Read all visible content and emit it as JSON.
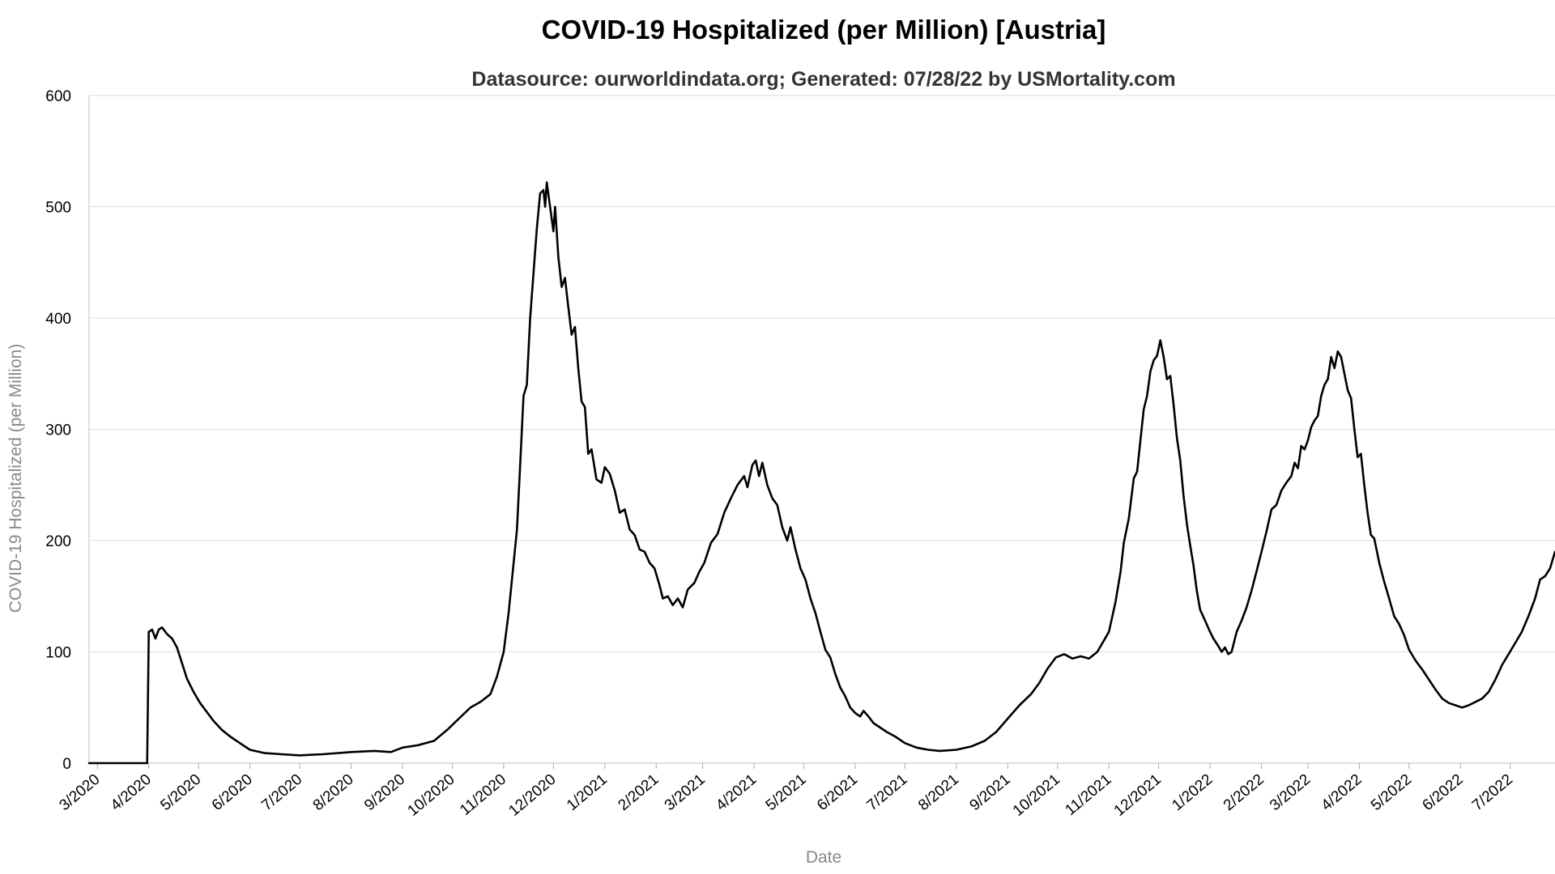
{
  "chart_data": {
    "type": "line",
    "title": "COVID-19 Hospitalized (per Million) [Austria]",
    "subtitle": "Datasource: ourworldindata.org; Generated: 07/28/22 by USMortality.com",
    "xlabel": "Date",
    "ylabel": "COVID-19 Hospitalized (per Million)",
    "ylim": [
      0,
      600
    ],
    "xlim": [
      "2020-02-25",
      "2022-07-28"
    ],
    "grid": true,
    "yticks": [
      0,
      100,
      200,
      300,
      400,
      500,
      600
    ],
    "xticks": [
      {
        "date": "2020-03-01",
        "label": "3/2020"
      },
      {
        "date": "2020-04-01",
        "label": "4/2020"
      },
      {
        "date": "2020-05-01",
        "label": "5/2020"
      },
      {
        "date": "2020-06-01",
        "label": "6/2020"
      },
      {
        "date": "2020-07-01",
        "label": "7/2020"
      },
      {
        "date": "2020-08-01",
        "label": "8/2020"
      },
      {
        "date": "2020-09-01",
        "label": "9/2020"
      },
      {
        "date": "2020-10-01",
        "label": "10/2020"
      },
      {
        "date": "2020-11-01",
        "label": "11/2020"
      },
      {
        "date": "2020-12-01",
        "label": "12/2020"
      },
      {
        "date": "2021-01-01",
        "label": "1/2021"
      },
      {
        "date": "2021-02-01",
        "label": "2/2021"
      },
      {
        "date": "2021-03-01",
        "label": "3/2021"
      },
      {
        "date": "2021-04-01",
        "label": "4/2021"
      },
      {
        "date": "2021-05-01",
        "label": "5/2021"
      },
      {
        "date": "2021-06-01",
        "label": "6/2021"
      },
      {
        "date": "2021-07-01",
        "label": "7/2021"
      },
      {
        "date": "2021-08-01",
        "label": "8/2021"
      },
      {
        "date": "2021-09-01",
        "label": "9/2021"
      },
      {
        "date": "2021-10-01",
        "label": "10/2021"
      },
      {
        "date": "2021-11-01",
        "label": "11/2021"
      },
      {
        "date": "2021-12-01",
        "label": "12/2021"
      },
      {
        "date": "2022-01-01",
        "label": "1/2022"
      },
      {
        "date": "2022-02-01",
        "label": "2/2022"
      },
      {
        "date": "2022-03-01",
        "label": "3/2022"
      },
      {
        "date": "2022-04-01",
        "label": "4/2022"
      },
      {
        "date": "2022-05-01",
        "label": "5/2022"
      },
      {
        "date": "2022-06-01",
        "label": "6/2022"
      },
      {
        "date": "2022-07-01",
        "label": "7/2022"
      }
    ],
    "series": [
      {
        "color": "#000000",
        "points": [
          [
            "2020-02-25",
            0
          ],
          [
            "2020-03-31",
            0
          ],
          [
            "2020-04-01",
            118
          ],
          [
            "2020-04-03",
            120
          ],
          [
            "2020-04-05",
            112
          ],
          [
            "2020-04-07",
            120
          ],
          [
            "2020-04-09",
            122
          ],
          [
            "2020-04-12",
            116
          ],
          [
            "2020-04-15",
            112
          ],
          [
            "2020-04-18",
            104
          ],
          [
            "2020-04-21",
            90
          ],
          [
            "2020-04-24",
            76
          ],
          [
            "2020-04-28",
            64
          ],
          [
            "2020-05-02",
            54
          ],
          [
            "2020-05-06",
            46
          ],
          [
            "2020-05-10",
            38
          ],
          [
            "2020-05-15",
            30
          ],
          [
            "2020-05-20",
            24
          ],
          [
            "2020-05-26",
            18
          ],
          [
            "2020-06-01",
            12
          ],
          [
            "2020-06-10",
            9
          ],
          [
            "2020-06-20",
            8
          ],
          [
            "2020-07-01",
            7
          ],
          [
            "2020-07-15",
            8
          ],
          [
            "2020-08-01",
            10
          ],
          [
            "2020-08-15",
            11
          ],
          [
            "2020-08-25",
            10
          ],
          [
            "2020-09-01",
            14
          ],
          [
            "2020-09-10",
            16
          ],
          [
            "2020-09-20",
            20
          ],
          [
            "2020-09-28",
            30
          ],
          [
            "2020-10-05",
            40
          ],
          [
            "2020-10-12",
            50
          ],
          [
            "2020-10-18",
            55
          ],
          [
            "2020-10-24",
            62
          ],
          [
            "2020-10-28",
            78
          ],
          [
            "2020-11-01",
            100
          ],
          [
            "2020-11-04",
            135
          ],
          [
            "2020-11-07",
            180
          ],
          [
            "2020-11-09",
            210
          ],
          [
            "2020-11-11",
            270
          ],
          [
            "2020-11-13",
            330
          ],
          [
            "2020-11-15",
            340
          ],
          [
            "2020-11-17",
            400
          ],
          [
            "2020-11-19",
            440
          ],
          [
            "2020-11-21",
            480
          ],
          [
            "2020-11-23",
            512
          ],
          [
            "2020-11-25",
            515
          ],
          [
            "2020-11-26",
            500
          ],
          [
            "2020-11-27",
            522
          ],
          [
            "2020-11-29",
            500
          ],
          [
            "2020-12-01",
            478
          ],
          [
            "2020-12-02",
            500
          ],
          [
            "2020-12-04",
            455
          ],
          [
            "2020-12-06",
            428
          ],
          [
            "2020-12-08",
            436
          ],
          [
            "2020-12-10",
            410
          ],
          [
            "2020-12-12",
            385
          ],
          [
            "2020-12-14",
            392
          ],
          [
            "2020-12-16",
            355
          ],
          [
            "2020-12-18",
            325
          ],
          [
            "2020-12-20",
            320
          ],
          [
            "2020-12-22",
            278
          ],
          [
            "2020-12-24",
            282
          ],
          [
            "2020-12-27",
            255
          ],
          [
            "2020-12-30",
            252
          ],
          [
            "2021-01-01",
            266
          ],
          [
            "2021-01-04",
            260
          ],
          [
            "2021-01-07",
            245
          ],
          [
            "2021-01-10",
            225
          ],
          [
            "2021-01-13",
            228
          ],
          [
            "2021-01-16",
            210
          ],
          [
            "2021-01-19",
            205
          ],
          [
            "2021-01-22",
            192
          ],
          [
            "2021-01-25",
            190
          ],
          [
            "2021-01-28",
            180
          ],
          [
            "2021-01-31",
            175
          ],
          [
            "2021-02-03",
            160
          ],
          [
            "2021-02-05",
            148
          ],
          [
            "2021-02-08",
            150
          ],
          [
            "2021-02-11",
            142
          ],
          [
            "2021-02-14",
            148
          ],
          [
            "2021-02-17",
            140
          ],
          [
            "2021-02-20",
            156
          ],
          [
            "2021-02-24",
            162
          ],
          [
            "2021-02-27",
            172
          ],
          [
            "2021-03-02",
            180
          ],
          [
            "2021-03-06",
            198
          ],
          [
            "2021-03-10",
            206
          ],
          [
            "2021-03-14",
            225
          ],
          [
            "2021-03-18",
            238
          ],
          [
            "2021-03-22",
            250
          ],
          [
            "2021-03-26",
            258
          ],
          [
            "2021-03-28",
            248
          ],
          [
            "2021-03-31",
            268
          ],
          [
            "2021-04-02",
            272
          ],
          [
            "2021-04-04",
            258
          ],
          [
            "2021-04-06",
            270
          ],
          [
            "2021-04-09",
            250
          ],
          [
            "2021-04-12",
            238
          ],
          [
            "2021-04-15",
            232
          ],
          [
            "2021-04-18",
            212
          ],
          [
            "2021-04-21",
            200
          ],
          [
            "2021-04-23",
            212
          ],
          [
            "2021-04-26",
            192
          ],
          [
            "2021-04-29",
            175
          ],
          [
            "2021-05-02",
            165
          ],
          [
            "2021-05-05",
            148
          ],
          [
            "2021-05-08",
            135
          ],
          [
            "2021-05-11",
            118
          ],
          [
            "2021-05-14",
            102
          ],
          [
            "2021-05-17",
            95
          ],
          [
            "2021-05-20",
            80
          ],
          [
            "2021-05-23",
            68
          ],
          [
            "2021-05-26",
            60
          ],
          [
            "2021-05-29",
            50
          ],
          [
            "2021-06-01",
            45
          ],
          [
            "2021-06-04",
            42
          ],
          [
            "2021-06-06",
            47
          ],
          [
            "2021-06-09",
            42
          ],
          [
            "2021-06-12",
            36
          ],
          [
            "2021-06-16",
            32
          ],
          [
            "2021-06-20",
            28
          ],
          [
            "2021-06-25",
            24
          ],
          [
            "2021-07-01",
            18
          ],
          [
            "2021-07-08",
            14
          ],
          [
            "2021-07-15",
            12
          ],
          [
            "2021-07-22",
            11
          ],
          [
            "2021-08-01",
            12
          ],
          [
            "2021-08-10",
            15
          ],
          [
            "2021-08-18",
            20
          ],
          [
            "2021-08-25",
            28
          ],
          [
            "2021-09-01",
            40
          ],
          [
            "2021-09-08",
            52
          ],
          [
            "2021-09-15",
            62
          ],
          [
            "2021-09-20",
            72
          ],
          [
            "2021-09-25",
            85
          ],
          [
            "2021-09-30",
            95
          ],
          [
            "2021-10-05",
            98
          ],
          [
            "2021-10-10",
            94
          ],
          [
            "2021-10-15",
            96
          ],
          [
            "2021-10-20",
            94
          ],
          [
            "2021-10-25",
            100
          ],
          [
            "2021-11-01",
            118
          ],
          [
            "2021-11-05",
            145
          ],
          [
            "2021-11-08",
            172
          ],
          [
            "2021-11-10",
            198
          ],
          [
            "2021-11-13",
            220
          ],
          [
            "2021-11-16",
            256
          ],
          [
            "2021-11-18",
            262
          ],
          [
            "2021-11-20",
            290
          ],
          [
            "2021-11-22",
            318
          ],
          [
            "2021-11-24",
            330
          ],
          [
            "2021-11-26",
            352
          ],
          [
            "2021-11-28",
            362
          ],
          [
            "2021-11-30",
            366
          ],
          [
            "2021-12-02",
            380
          ],
          [
            "2021-12-04",
            365
          ],
          [
            "2021-12-06",
            345
          ],
          [
            "2021-12-08",
            348
          ],
          [
            "2021-12-10",
            322
          ],
          [
            "2021-12-12",
            292
          ],
          [
            "2021-12-14",
            272
          ],
          [
            "2021-12-16",
            240
          ],
          [
            "2021-12-18",
            215
          ],
          [
            "2021-12-20",
            196
          ],
          [
            "2021-12-22",
            178
          ],
          [
            "2021-12-24",
            155
          ],
          [
            "2021-12-26",
            138
          ],
          [
            "2021-12-29",
            128
          ],
          [
            "2022-01-01",
            118
          ],
          [
            "2022-01-03",
            112
          ],
          [
            "2022-01-06",
            105
          ],
          [
            "2022-01-08",
            100
          ],
          [
            "2022-01-10",
            104
          ],
          [
            "2022-01-12",
            98
          ],
          [
            "2022-01-14",
            100
          ],
          [
            "2022-01-17",
            118
          ],
          [
            "2022-01-20",
            128
          ],
          [
            "2022-01-23",
            140
          ],
          [
            "2022-01-26",
            155
          ],
          [
            "2022-01-29",
            172
          ],
          [
            "2022-02-01",
            190
          ],
          [
            "2022-02-04",
            208
          ],
          [
            "2022-02-07",
            228
          ],
          [
            "2022-02-10",
            232
          ],
          [
            "2022-02-13",
            245
          ],
          [
            "2022-02-16",
            252
          ],
          [
            "2022-02-19",
            258
          ],
          [
            "2022-02-21",
            270
          ],
          [
            "2022-02-23",
            265
          ],
          [
            "2022-02-25",
            285
          ],
          [
            "2022-02-27",
            282
          ],
          [
            "2022-03-01",
            290
          ],
          [
            "2022-03-03",
            302
          ],
          [
            "2022-03-05",
            308
          ],
          [
            "2022-03-07",
            312
          ],
          [
            "2022-03-09",
            330
          ],
          [
            "2022-03-11",
            340
          ],
          [
            "2022-03-13",
            345
          ],
          [
            "2022-03-15",
            365
          ],
          [
            "2022-03-17",
            355
          ],
          [
            "2022-03-19",
            370
          ],
          [
            "2022-03-21",
            365
          ],
          [
            "2022-03-23",
            350
          ],
          [
            "2022-03-25",
            335
          ],
          [
            "2022-03-27",
            328
          ],
          [
            "2022-03-29",
            300
          ],
          [
            "2022-03-31",
            275
          ],
          [
            "2022-04-02",
            278
          ],
          [
            "2022-04-04",
            250
          ],
          [
            "2022-04-06",
            225
          ],
          [
            "2022-04-08",
            205
          ],
          [
            "2022-04-10",
            202
          ],
          [
            "2022-04-13",
            180
          ],
          [
            "2022-04-16",
            163
          ],
          [
            "2022-04-19",
            148
          ],
          [
            "2022-04-22",
            132
          ],
          [
            "2022-04-25",
            125
          ],
          [
            "2022-04-28",
            115
          ],
          [
            "2022-05-01",
            102
          ],
          [
            "2022-05-05",
            92
          ],
          [
            "2022-05-09",
            84
          ],
          [
            "2022-05-13",
            75
          ],
          [
            "2022-05-17",
            66
          ],
          [
            "2022-05-21",
            58
          ],
          [
            "2022-05-25",
            54
          ],
          [
            "2022-05-29",
            52
          ],
          [
            "2022-06-02",
            50
          ],
          [
            "2022-06-06",
            52
          ],
          [
            "2022-06-10",
            55
          ],
          [
            "2022-06-14",
            58
          ],
          [
            "2022-06-18",
            64
          ],
          [
            "2022-06-22",
            75
          ],
          [
            "2022-06-26",
            88
          ],
          [
            "2022-06-30",
            98
          ],
          [
            "2022-07-04",
            108
          ],
          [
            "2022-07-08",
            118
          ],
          [
            "2022-07-12",
            132
          ],
          [
            "2022-07-16",
            148
          ],
          [
            "2022-07-19",
            165
          ],
          [
            "2022-07-22",
            168
          ],
          [
            "2022-07-25",
            175
          ],
          [
            "2022-07-28",
            190
          ]
        ]
      }
    ]
  }
}
